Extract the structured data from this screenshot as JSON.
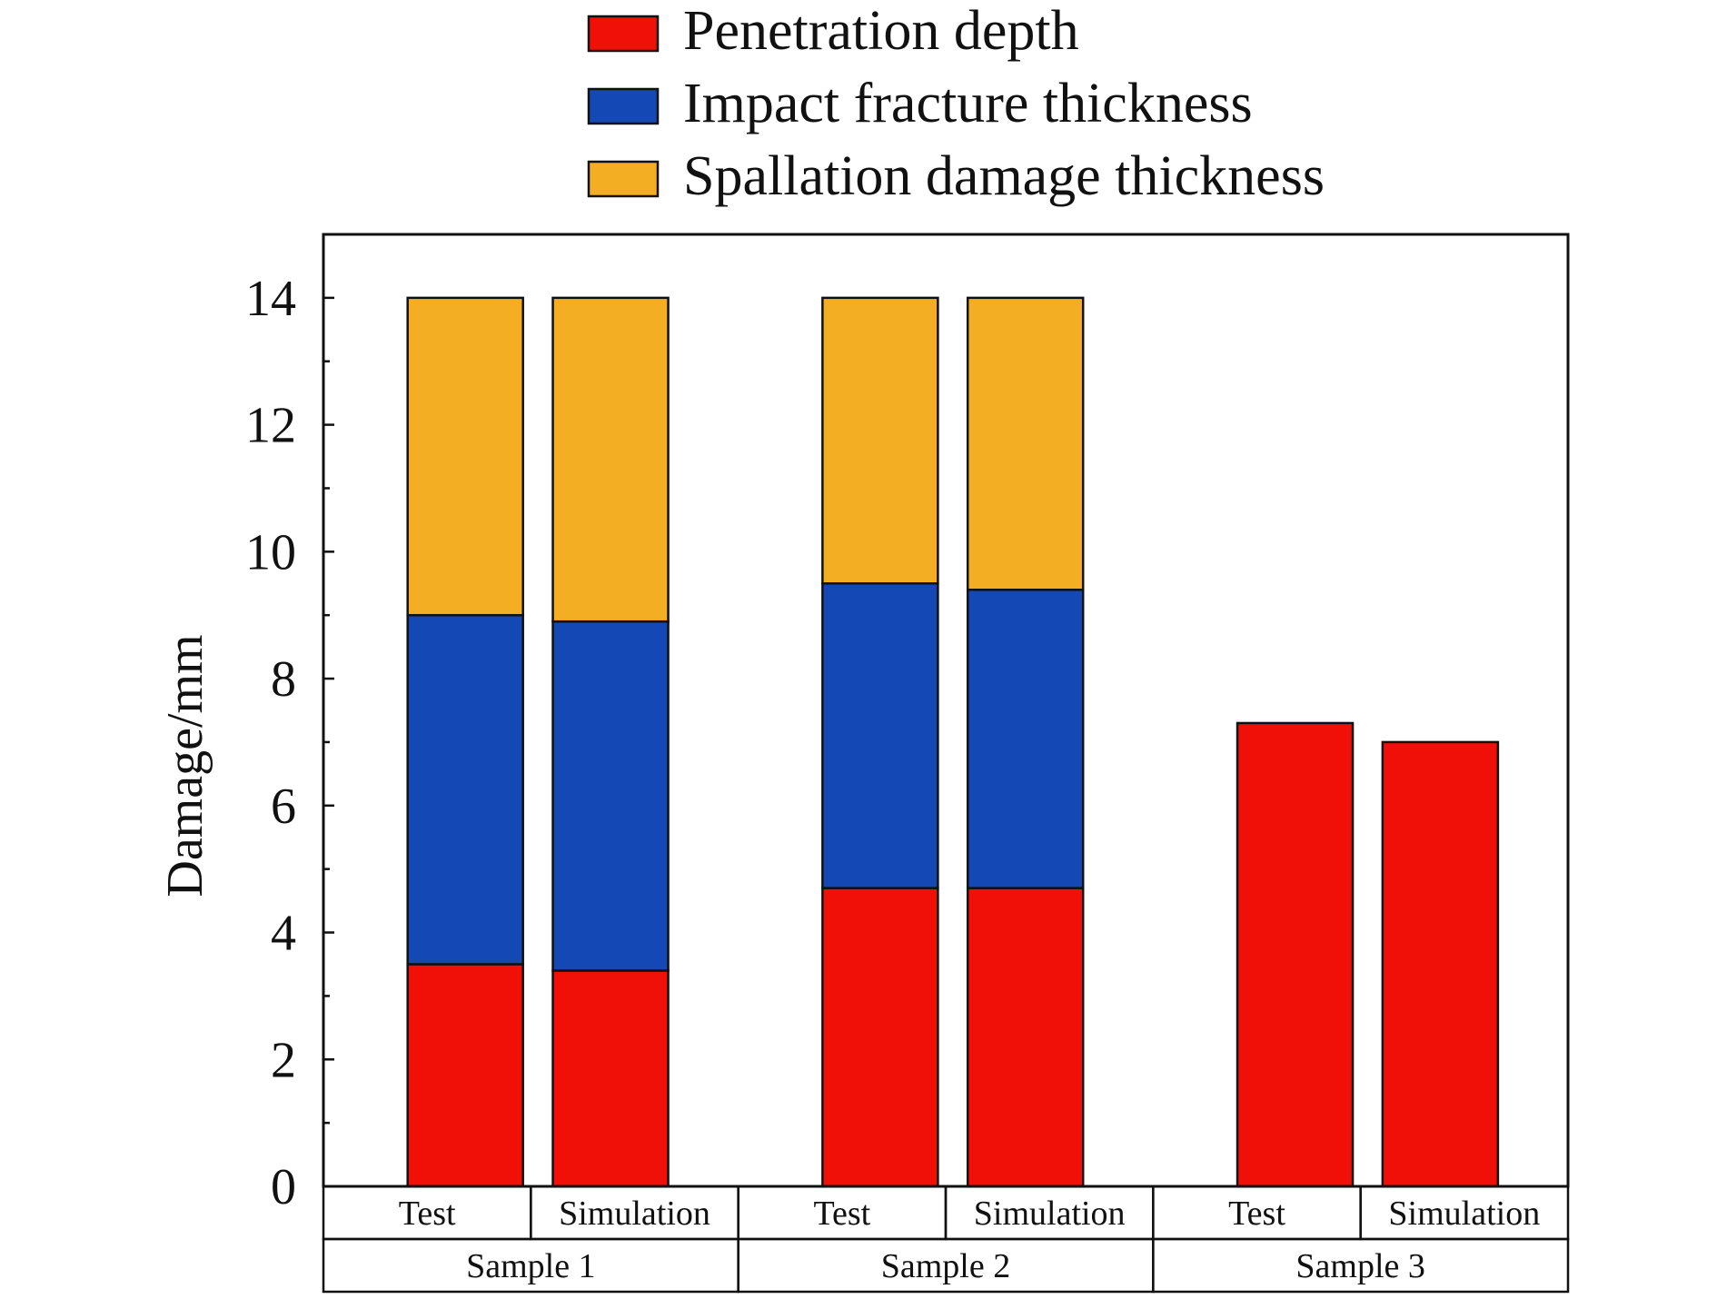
{
  "chart_data": {
    "type": "bar",
    "stacked": true,
    "ylabel": "Damage/mm",
    "ylim": [
      0,
      15
    ],
    "yticks": [
      0,
      2,
      4,
      6,
      8,
      10,
      12,
      14
    ],
    "grid": false,
    "legend_position": "top",
    "groups": [
      {
        "label": "Sample 1",
        "bars": [
          "Test",
          "Simulation"
        ]
      },
      {
        "label": "Sample 2",
        "bars": [
          "Test",
          "Simulation"
        ]
      },
      {
        "label": "Sample 3",
        "bars": [
          "Test",
          "Simulation"
        ]
      }
    ],
    "categories": [
      "Test",
      "Simulation",
      "Test",
      "Simulation",
      "Test",
      "Simulation"
    ],
    "series": [
      {
        "name": "Penetration depth",
        "color": "#f01008",
        "values": [
          3.5,
          3.4,
          4.7,
          4.7,
          7.3,
          7.0
        ]
      },
      {
        "name": "Impact fracture thickness",
        "color": "#1448b4",
        "values": [
          5.5,
          5.5,
          4.8,
          4.7,
          0,
          0
        ]
      },
      {
        "name": "Spallation damage thickness",
        "color": "#f4ae24",
        "values": [
          5.0,
          5.1,
          4.5,
          4.6,
          0,
          0
        ]
      }
    ]
  }
}
